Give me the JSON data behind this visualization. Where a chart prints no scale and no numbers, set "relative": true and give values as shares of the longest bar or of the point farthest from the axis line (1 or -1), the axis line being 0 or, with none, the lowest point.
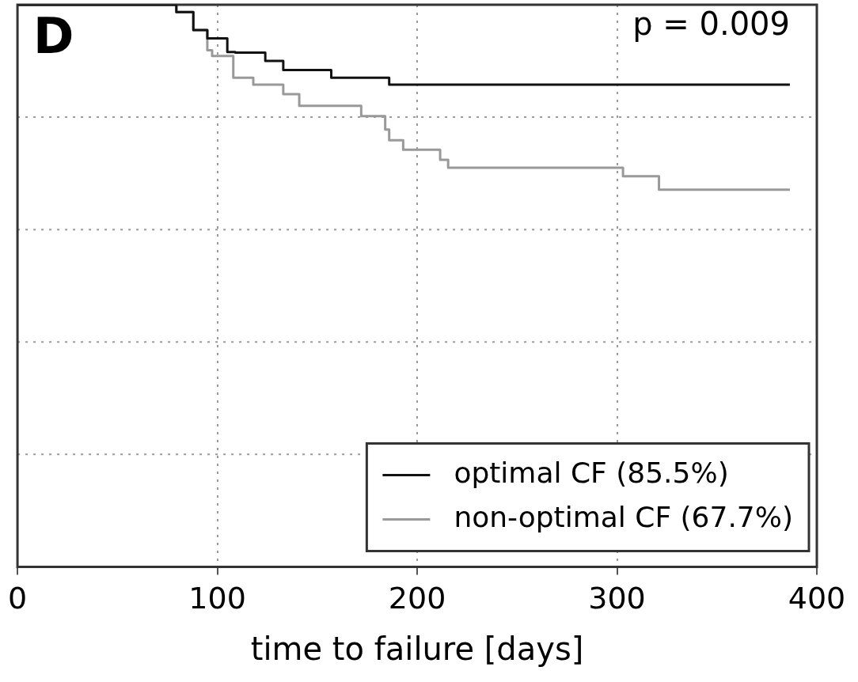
{
  "chart_data": {
    "type": "step",
    "xlabel": "time to failure [days]",
    "relative": true,
    "xlim": [
      0,
      400
    ],
    "xticks": [
      0,
      100,
      200,
      300,
      400
    ],
    "grid": true,
    "legend": "bottom right",
    "line_style": "solid",
    "marker": "none",
    "annotations": [
      "D",
      "p = 0.009"
    ],
    "series": [
      {
        "name": "optimal CF (85.5%)",
        "color": "#111111",
        "x": [
          0,
          79.5,
          88,
          95,
          105,
          109,
          124,
          133,
          157,
          186,
          215.5,
          386.5
        ],
        "values": [
          1,
          1,
          0.987,
          0.955,
          0.94,
          0.916,
          0.915,
          0.9,
          0.884,
          0.87,
          0.858,
          0.858
        ]
      },
      {
        "name": "non-optimal CF (67.7%)",
        "color": "#999999",
        "x": [
          0,
          79.5,
          88,
          95,
          97.4,
          108,
          118,
          133,
          141,
          172,
          184,
          186,
          193,
          211.5,
          215.5,
          303,
          321,
          365,
          386.5
        ],
        "values": [
          1,
          1,
          0.987,
          0.955,
          0.919,
          0.909,
          0.87,
          0.858,
          0.841,
          0.82,
          0.802,
          0.778,
          0.759,
          0.742,
          0.724,
          0.71,
          0.695,
          0.671,
          0.671
        ]
      }
    ]
  }
}
